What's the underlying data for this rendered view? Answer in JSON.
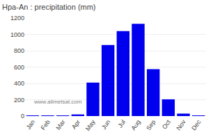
{
  "chart_data": {
    "type": "bar",
    "title": "Hpa-An : precipitation (mm)",
    "categories": [
      "Jan",
      "Feb",
      "Mar",
      "Apr",
      "May",
      "Jun",
      "Jul",
      "Aug",
      "Sep",
      "Oct",
      "Nov",
      "Dec"
    ],
    "values": [
      5,
      5,
      5,
      20,
      410,
      870,
      1040,
      1130,
      575,
      205,
      30,
      5
    ],
    "color": "#0000ee",
    "ylim": [
      0,
      1200
    ],
    "yticks": [
      0,
      200,
      400,
      600,
      800,
      1000,
      1200
    ],
    "grid": true,
    "annotations": [
      "www.allmetsat.com"
    ]
  }
}
